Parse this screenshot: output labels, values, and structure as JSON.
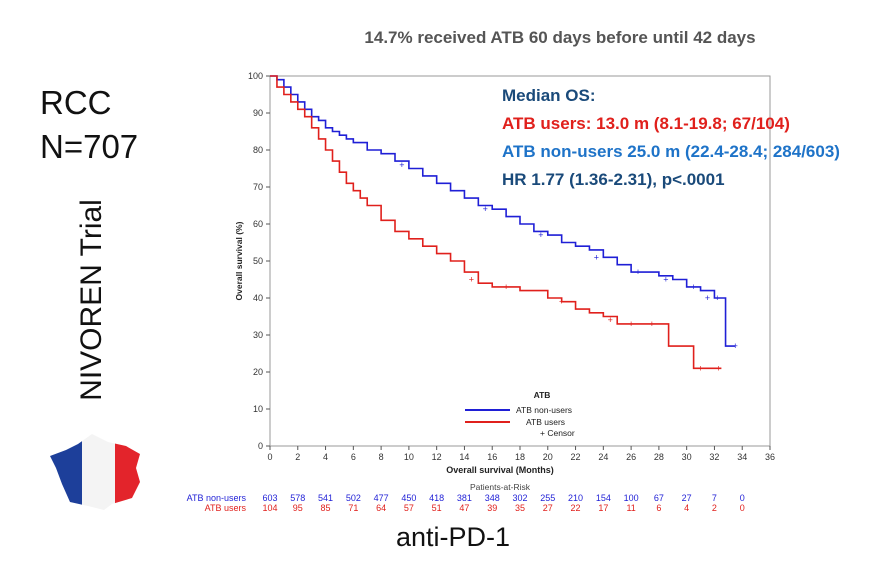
{
  "slide": {
    "title": "14.7% received ATB 60 days before until 42 days",
    "study_lines": [
      "RCC",
      "N=707"
    ],
    "trial": "NIVOREN Trial",
    "caption": "anti-PD-1"
  },
  "annotations": {
    "heading": "Median OS:",
    "line1": "ATB users: 13.0 m (8.1-19.8; 67/104)",
    "line2": "ATB non-users 25.0 m (22.4-28.4; 284/603)",
    "line3": "HR 1.77 (1.36-2.31), p<.0001"
  },
  "colors": {
    "non_users": "#1f1fd6",
    "users": "#e0201c",
    "heading": "#1a4a7a",
    "line2": "#1e73c8",
    "line1": "#e0201c",
    "line3": "#1a4a7a",
    "flag_blue": "#1d3f9a",
    "flag_red": "#e3242b"
  },
  "flag_icon": "france-flag-map-icon",
  "chart_data": {
    "type": "line",
    "ylabel": "Overall survival (%)",
    "xlabel": "Overall survival (Months)",
    "xlim": [
      0,
      36
    ],
    "ylim": [
      0,
      100
    ],
    "xticks": [
      0,
      2,
      4,
      6,
      8,
      10,
      12,
      14,
      16,
      18,
      20,
      22,
      24,
      26,
      28,
      30,
      32,
      34,
      36
    ],
    "yticks": [
      0,
      10,
      20,
      30,
      40,
      50,
      60,
      70,
      80,
      90,
      100
    ],
    "legend": {
      "title": "ATB",
      "entries": [
        "ATB non-users",
        "ATB users",
        "Censor"
      ],
      "censor_symbol": "+",
      "placement": "bottom-center"
    },
    "series": [
      {
        "name": "ATB non-users",
        "step": true,
        "x": [
          0,
          0.5,
          1,
          1.5,
          2,
          2.5,
          3,
          3.5,
          4,
          4.5,
          5,
          5.5,
          6,
          7,
          8,
          9,
          10,
          11,
          12,
          13,
          14,
          15,
          16,
          17,
          18,
          19,
          20,
          21,
          22,
          23,
          24,
          25,
          26,
          27,
          28,
          29,
          30,
          31,
          32,
          32.5,
          32.8,
          33.5
        ],
        "y": [
          100,
          99,
          97,
          95,
          93,
          91,
          89,
          88,
          86,
          85,
          84,
          83,
          82,
          80,
          79,
          77,
          75,
          73,
          71,
          69,
          67,
          65,
          64,
          62,
          60,
          58,
          57,
          55,
          54,
          53,
          51,
          49,
          47,
          47,
          46,
          45,
          43,
          42,
          40,
          40,
          27,
          27
        ]
      },
      {
        "name": "ATB users",
        "step": true,
        "x": [
          0,
          0.5,
          1,
          1.5,
          2,
          2.5,
          3,
          3.5,
          4,
          4.5,
          5,
          5.5,
          6,
          6.5,
          7,
          8,
          9,
          10,
          11,
          12,
          13,
          14,
          15,
          16,
          17,
          18,
          19,
          20,
          21,
          22,
          23,
          24,
          25,
          26,
          27,
          28,
          28.7,
          29.5,
          30.5,
          31.5,
          32.5
        ],
        "y": [
          100,
          97,
          95,
          93,
          91,
          89,
          86,
          83,
          80,
          77,
          74,
          71,
          69,
          67,
          65,
          61,
          58,
          56,
          54,
          52,
          50,
          47,
          44,
          43,
          43,
          42,
          42,
          40,
          39,
          37,
          36,
          35,
          33,
          33,
          33,
          33,
          27,
          27,
          21,
          21,
          21
        ]
      }
    ],
    "censor_marks": {
      "ATB non-users": [
        [
          9.5,
          76
        ],
        [
          15.5,
          64
        ],
        [
          19.5,
          57
        ],
        [
          23.5,
          51
        ],
        [
          26.5,
          47
        ],
        [
          28.5,
          45
        ],
        [
          30.5,
          43
        ],
        [
          31.5,
          40
        ],
        [
          32.2,
          40
        ],
        [
          33.5,
          27
        ]
      ],
      "ATB users": [
        [
          14.5,
          45
        ],
        [
          17,
          43
        ],
        [
          21,
          39
        ],
        [
          24.5,
          34
        ],
        [
          26,
          33
        ],
        [
          27.5,
          33
        ],
        [
          31,
          21
        ],
        [
          32.3,
          21
        ]
      ]
    },
    "risk_table": {
      "title": "Patients-at-Risk",
      "times": [
        0,
        2,
        4,
        6,
        8,
        10,
        12,
        14,
        16,
        18,
        20,
        22,
        24,
        26,
        28,
        30,
        32,
        34
      ],
      "rows": [
        {
          "label": "ATB non-users",
          "counts": [
            603,
            578,
            541,
            502,
            477,
            450,
            418,
            381,
            348,
            302,
            255,
            210,
            154,
            100,
            67,
            27,
            7,
            0
          ]
        },
        {
          "label": "ATB users",
          "counts": [
            104,
            95,
            85,
            71,
            64,
            57,
            51,
            47,
            39,
            35,
            27,
            22,
            17,
            11,
            6,
            4,
            2,
            0
          ]
        }
      ]
    }
  }
}
